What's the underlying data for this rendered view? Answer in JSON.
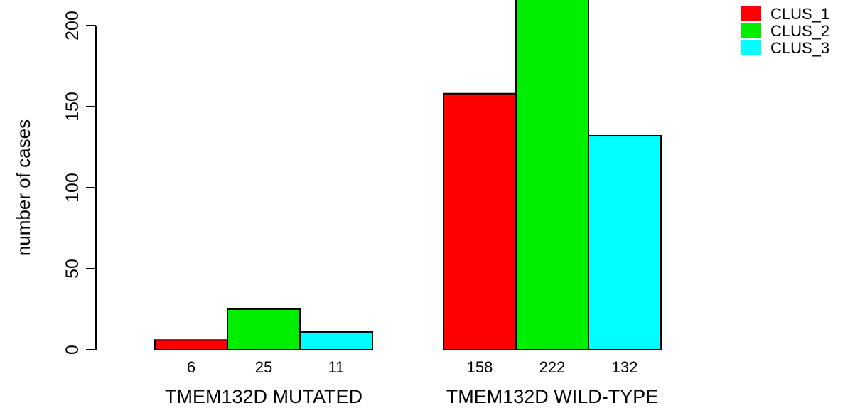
{
  "chart_data": {
    "type": "bar",
    "ylabel": "number of cases",
    "ylim": [
      0,
      222
    ],
    "yticks": [
      0,
      50,
      100,
      150,
      200
    ],
    "groups": [
      "TMEM132D MUTATED",
      "TMEM132D WILD-TYPE"
    ],
    "series": [
      {
        "name": "CLUS_1",
        "color": "#ff0000",
        "values": [
          6,
          158
        ]
      },
      {
        "name": "CLUS_2",
        "color": "#00ee00",
        "values": [
          25,
          222
        ]
      },
      {
        "name": "CLUS_3",
        "color": "#00ffff",
        "values": [
          11,
          132
        ]
      }
    ],
    "count_labels": [
      [
        "6",
        "25",
        "11"
      ],
      [
        "158",
        "222",
        "132"
      ]
    ],
    "grid": false,
    "legend_position": "top-right"
  }
}
